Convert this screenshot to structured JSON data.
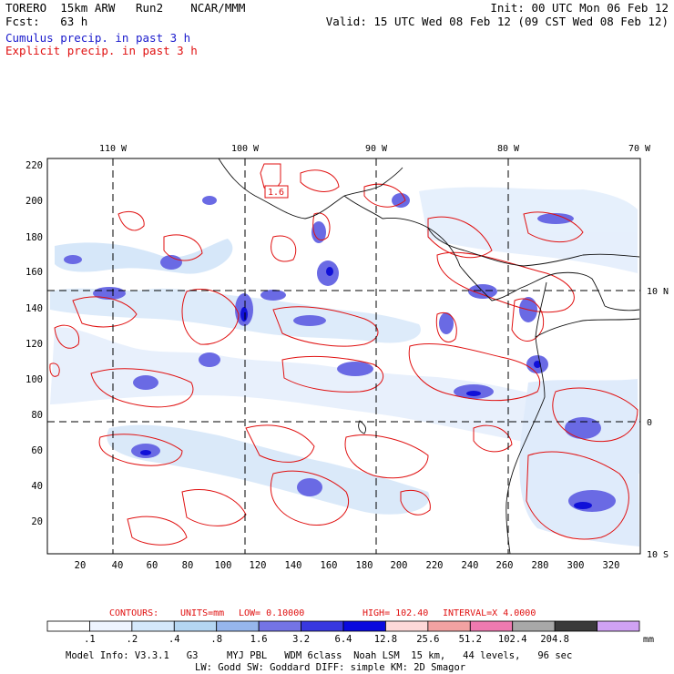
{
  "header": {
    "left1": "TORERO  15km ARW   Run2    NCAR/MMM",
    "left2": "Fcst:   63 h",
    "right1": "Init: 00 UTC Mon 06 Feb 12",
    "right2": "Valid: 15 UTC Wed 08 Feb 12 (09 CST Wed 08 Feb 12)",
    "legend1": "Cumulus precip. in past 3 h",
    "legend2": "Explicit precip. in past 3 h"
  },
  "colors": {
    "cumulus": "#1a1acc",
    "explicit": "#e01010"
  },
  "map": {
    "lon_labels": [
      "110 W",
      "100 W",
      "90 W",
      "80 W",
      "70 W"
    ],
    "lat_labels": [
      "10 N",
      "0",
      "10 S"
    ],
    "y_ticks": [
      "220",
      "200",
      "180",
      "160",
      "140",
      "120",
      "100",
      "80",
      "60",
      "40",
      "20"
    ],
    "x_ticks": [
      "20",
      "40",
      "60",
      "80",
      "100",
      "120",
      "140",
      "160",
      "180",
      "200",
      "220",
      "240",
      "260",
      "280",
      "300",
      "320"
    ],
    "contour_label": "1.6"
  },
  "contour_info": {
    "contours": "CONTOURS:",
    "units": "UNITS=mm",
    "low": "LOW=  0.10000",
    "high": "HIGH=  102.40",
    "interval": "INTERVAL=X  4.0000"
  },
  "colorbar": {
    "colors": [
      "#ffffff",
      "#eef4ff",
      "#d4e8fb",
      "#b4d6f2",
      "#96b6ec",
      "#7474e6",
      "#3838e0",
      "#0a0ade",
      "#fdd8d8",
      "#f2a2a2",
      "#ee7ab0",
      "#a8a8a8",
      "#3a3a3a",
      "#d0a2f4"
    ],
    "labels": [
      ".1",
      ".2",
      ".4",
      ".8",
      "1.6",
      "3.2",
      "6.4",
      "12.8",
      "25.6",
      "51.2",
      "102.4",
      "204.8"
    ],
    "unit": "mm"
  },
  "footer": {
    "line1": "Model Info: V3.3.1   G3     MYJ PBL   WDM 6class  Noah LSM  15 km,   44 levels,   96 sec",
    "line2": "LW: Godd SW: Goddard DIFF: simple KM: 2D Smagor"
  }
}
